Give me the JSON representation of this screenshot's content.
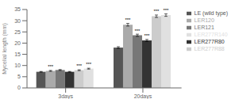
{
  "chart_data": {
    "type": "bar",
    "categories": [
      "3days",
      "20days"
    ],
    "series": [
      {
        "name": "LE (wild type)",
        "color": "#555555",
        "values": [
          7.2,
          18.0
        ],
        "errors": [
          0.15,
          0.4
        ],
        "annotations": [
          null,
          null
        ]
      },
      {
        "name": "LER120",
        "color": "#aaaaaa",
        "values": [
          7.6,
          28.2
        ],
        "errors": [
          0.2,
          0.6
        ],
        "annotations": [
          "***",
          "***"
        ]
      },
      {
        "name": "LER121",
        "color": "#777777",
        "values": [
          8.0,
          23.5
        ],
        "errors": [
          0.2,
          0.5
        ],
        "annotations": [
          null,
          "***"
        ]
      },
      {
        "name": "LER277R80",
        "color": "#333333",
        "values": [
          7.2,
          21.2
        ],
        "errors": [
          0.15,
          0.45
        ],
        "annotations": [
          null,
          "***"
        ]
      },
      {
        "name": "LER277R88",
        "color": "#cccccc",
        "values": [
          7.9,
          32.0
        ],
        "errors": [
          0.2,
          0.55
        ],
        "annotations": [
          "***",
          "***"
        ]
      },
      {
        "name": "LER277R140",
        "color": "#e0e0e0",
        "values": [
          8.6,
          32.5
        ],
        "errors": [
          0.2,
          0.55
        ],
        "annotations": [
          "***",
          "***"
        ]
      }
    ],
    "ylabel": "Mycelial length (mm)",
    "ylim": [
      0.0,
      35.0
    ],
    "yticks": [
      0.0,
      5.0,
      10.0,
      15.0,
      20.0,
      25.0,
      30.0,
      35.0
    ],
    "grid": false,
    "legend": "upper right"
  }
}
